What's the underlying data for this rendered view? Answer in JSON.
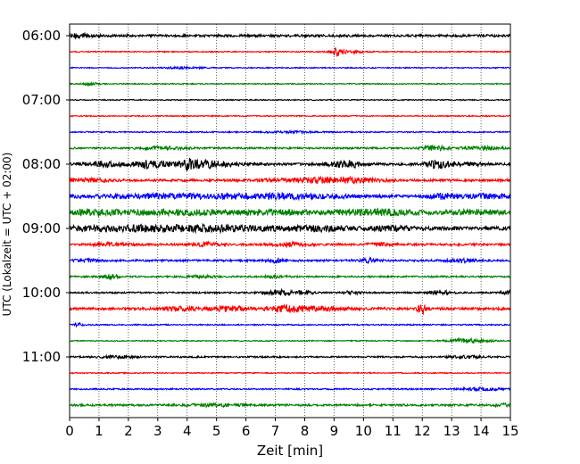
{
  "chart_data": {
    "type": "line",
    "title": "",
    "xlabel": "Zeit  [min]",
    "ylabel": "UTC (Lokalzeit = UTC + 02:00)",
    "xlim": [
      0,
      15
    ],
    "x_ticks": [
      "0",
      "1",
      "2",
      "3",
      "4",
      "5",
      "6",
      "7",
      "8",
      "9",
      "10",
      "11",
      "12",
      "13",
      "14",
      "15"
    ],
    "y_tick_labels": [
      "06:00",
      "07:00",
      "08:00",
      "09:00",
      "10:00",
      "11:00"
    ],
    "grid": "vertical dotted lines at each minute",
    "trace_interval_min": 15,
    "color_cycle": [
      "#000000",
      "#ff0000",
      "#0000ff",
      "#008000"
    ],
    "series": [
      {
        "start": "06:00",
        "color": "#000000",
        "noise": 1.3,
        "bursts": [
          [
            0.3,
            1.6,
            0.5
          ]
        ]
      },
      {
        "start": "06:15",
        "color": "#ff0000",
        "noise": 0.6,
        "bursts": [
          [
            9.1,
            4.0,
            0.12
          ],
          [
            9.4,
            1.2,
            0.4
          ]
        ]
      },
      {
        "start": "06:30",
        "color": "#0000ff",
        "noise": 0.6,
        "bursts": [
          [
            3.8,
            0.9,
            0.5
          ]
        ]
      },
      {
        "start": "06:45",
        "color": "#008000",
        "noise": 0.6,
        "bursts": [
          [
            0.7,
            1.0,
            0.2
          ]
        ]
      },
      {
        "start": "07:00",
        "color": "#000000",
        "noise": 0.6,
        "bursts": []
      },
      {
        "start": "07:15",
        "color": "#ff0000",
        "noise": 0.6,
        "bursts": []
      },
      {
        "start": "07:30",
        "color": "#0000ff",
        "noise": 0.7,
        "bursts": [
          [
            7.5,
            0.8,
            0.6
          ]
        ]
      },
      {
        "start": "07:45",
        "color": "#008000",
        "noise": 1.0,
        "bursts": [
          [
            3.2,
            1.2,
            0.6
          ],
          [
            12.4,
            2.2,
            0.3
          ],
          [
            14.0,
            1.3,
            0.5
          ]
        ]
      },
      {
        "start": "08:00",
        "color": "#000000",
        "noise": 1.4,
        "bursts": [
          [
            1.2,
            2.4,
            0.4
          ],
          [
            2.5,
            3.0,
            0.3
          ],
          [
            3.2,
            2.6,
            0.35
          ],
          [
            4.0,
            4.5,
            0.12
          ],
          [
            4.3,
            3.0,
            0.4
          ],
          [
            5.0,
            2.2,
            0.5
          ],
          [
            9.2,
            2.4,
            0.3
          ],
          [
            9.6,
            2.6,
            0.25
          ],
          [
            12.5,
            3.6,
            0.3
          ],
          [
            13.5,
            1.6,
            0.4
          ]
        ]
      },
      {
        "start": "08:15",
        "color": "#ff0000",
        "noise": 1.3,
        "bursts": [
          [
            0.6,
            1.6,
            0.5
          ],
          [
            8.3,
            2.0,
            1.2
          ],
          [
            9.5,
            1.6,
            0.8
          ]
        ]
      },
      {
        "start": "08:30",
        "color": "#0000ff",
        "noise": 1.6,
        "bursts": [
          [
            3.5,
            1.8,
            2.0
          ],
          [
            7.5,
            1.9,
            1.5
          ],
          [
            12.8,
            2.6,
            0.35
          ],
          [
            14.3,
            1.8,
            0.6
          ]
        ]
      },
      {
        "start": "08:45",
        "color": "#008000",
        "noise": 2.0,
        "bursts": [
          [
            0.8,
            1.6,
            0.7
          ],
          [
            3.5,
            2.0,
            1.5
          ],
          [
            7.2,
            1.6,
            1.2
          ],
          [
            10.5,
            2.4,
            1.0
          ],
          [
            13.8,
            1.6,
            0.6
          ]
        ]
      },
      {
        "start": "09:00",
        "color": "#000000",
        "noise": 2.0,
        "bursts": [
          [
            1.8,
            2.2,
            1.5
          ],
          [
            5.0,
            2.4,
            1.5
          ],
          [
            8.5,
            1.8,
            0.8
          ],
          [
            11.0,
            1.6,
            0.6
          ]
        ]
      },
      {
        "start": "09:15",
        "color": "#ff0000",
        "noise": 1.2,
        "bursts": [
          [
            1.5,
            1.6,
            0.4
          ],
          [
            4.6,
            1.8,
            0.3
          ],
          [
            7.5,
            1.7,
            0.4
          ],
          [
            10.5,
            1.6,
            0.3
          ]
        ]
      },
      {
        "start": "09:30",
        "color": "#0000ff",
        "noise": 1.1,
        "bursts": [
          [
            0.6,
            1.5,
            0.3
          ],
          [
            7.0,
            2.2,
            0.15
          ],
          [
            10.2,
            2.0,
            0.2
          ],
          [
            13.3,
            1.9,
            0.3
          ]
        ]
      },
      {
        "start": "09:45",
        "color": "#008000",
        "noise": 0.9,
        "bursts": [
          [
            1.4,
            2.4,
            0.2
          ],
          [
            4.5,
            1.4,
            0.3
          ],
          [
            7.0,
            1.4,
            0.3
          ]
        ]
      },
      {
        "start": "10:00",
        "color": "#000000",
        "noise": 0.9,
        "bursts": [
          [
            7.2,
            3.0,
            0.35
          ],
          [
            8.0,
            1.8,
            0.2
          ],
          [
            9.6,
            1.8,
            0.2
          ],
          [
            12.6,
            2.4,
            0.25
          ],
          [
            15.0,
            1.8,
            0.2
          ]
        ]
      },
      {
        "start": "10:15",
        "color": "#ff0000",
        "noise": 1.4,
        "bursts": [
          [
            3.8,
            2.0,
            0.4
          ],
          [
            5.4,
            2.6,
            0.4
          ],
          [
            7.5,
            3.2,
            0.5
          ],
          [
            8.8,
            2.0,
            0.4
          ],
          [
            12.0,
            4.5,
            0.12
          ]
        ]
      },
      {
        "start": "10:30",
        "color": "#0000ff",
        "noise": 0.7,
        "bursts": [
          [
            0.3,
            2.0,
            0.1
          ]
        ]
      },
      {
        "start": "10:45",
        "color": "#008000",
        "noise": 0.6,
        "bursts": [
          [
            13.6,
            2.2,
            0.5
          ]
        ]
      },
      {
        "start": "11:00",
        "color": "#000000",
        "noise": 0.9,
        "bursts": [
          [
            1.6,
            1.3,
            0.4
          ],
          [
            13.5,
            1.2,
            0.4
          ]
        ]
      },
      {
        "start": "11:15",
        "color": "#ff0000",
        "noise": 0.6,
        "bursts": []
      },
      {
        "start": "11:30",
        "color": "#0000ff",
        "noise": 0.8,
        "bursts": [
          [
            14.0,
            1.2,
            0.5
          ]
        ]
      },
      {
        "start": "11:45",
        "color": "#008000",
        "noise": 1.1,
        "bursts": [
          [
            5.0,
            1.4,
            0.6
          ],
          [
            14.8,
            1.4,
            0.3
          ]
        ]
      }
    ]
  }
}
